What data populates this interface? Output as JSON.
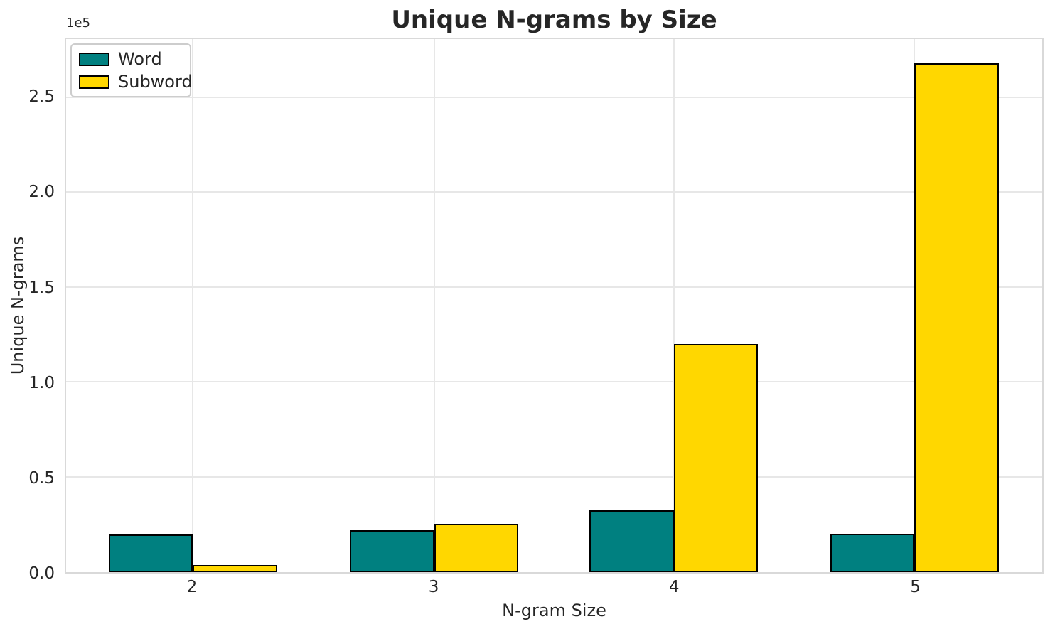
{
  "chart_data": {
    "type": "bar",
    "title": "Unique N-grams by Size",
    "xlabel": "N-gram Size",
    "ylabel": "Unique N-grams",
    "categories": [
      "2",
      "3",
      "4",
      "5"
    ],
    "series": [
      {
        "name": "Word",
        "color": "#008080",
        "values": [
          19900,
          22100,
          32700,
          20200
        ]
      },
      {
        "name": "Subword",
        "color": "#FFD700",
        "values": [
          3700,
          25600,
          120200,
          268100
        ]
      }
    ],
    "bar_edge_color": "#000000",
    "ylim": [
      0,
      281000
    ],
    "yticks": {
      "values": [
        0,
        50000,
        100000,
        150000,
        200000,
        250000
      ],
      "labels": [
        "0.0",
        "0.5",
        "1.0",
        "1.5",
        "2.0",
        "2.5"
      ],
      "offset_label": "1e5"
    },
    "grid": true,
    "legend": {
      "position": "upper left"
    },
    "colors": {
      "grid": "#e7e7e7",
      "spine": "#d9d9d9",
      "text": "#262626"
    }
  }
}
